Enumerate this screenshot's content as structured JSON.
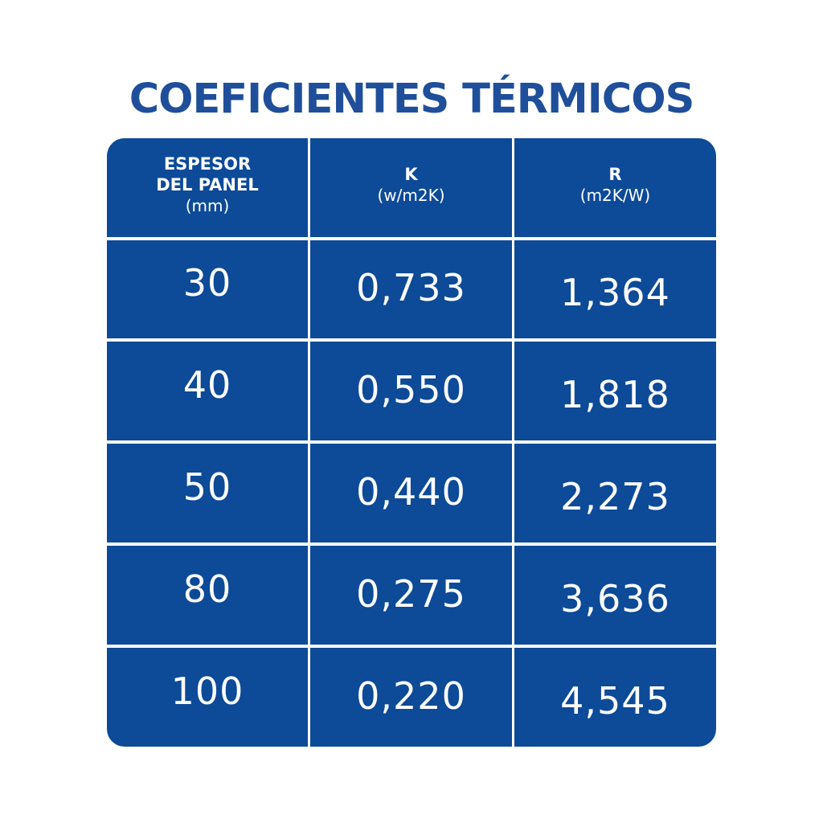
{
  "title": "COEFICIENTES TÉRMICOS",
  "colors": {
    "title": "#1f4f9a",
    "cell_background": "#0d4a98",
    "text": "#ffffff",
    "grid_lines": "#ffffff"
  },
  "headers": {
    "thickness": {
      "line1": "ESPESOR",
      "line2": "DEL PANEL",
      "unit": "(mm)"
    },
    "k": {
      "label": "K",
      "unit": "(w/m2K)"
    },
    "r": {
      "label": "R",
      "unit": "(m2K/W)"
    }
  },
  "rows": [
    {
      "thickness": "30",
      "k": "0,733",
      "r": "1,364"
    },
    {
      "thickness": "40",
      "k": "0,550",
      "r": "1,818"
    },
    {
      "thickness": "50",
      "k": "0,440",
      "r": "2,273"
    },
    {
      "thickness": "80",
      "k": "0,275",
      "r": "3,636"
    },
    {
      "thickness": "100",
      "k": "0,220",
      "r": "4,545"
    }
  ]
}
